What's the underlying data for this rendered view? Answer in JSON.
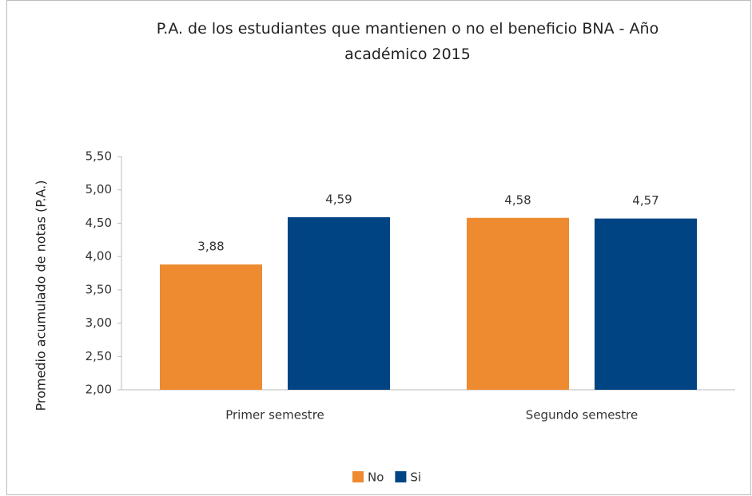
{
  "chart_data": {
    "type": "bar",
    "title": "P.A. de los estudiantes que mantienen o no el beneficio BNA - Año académico 2015",
    "ylabel": "Promedio acumulado de notas (P.A.)",
    "categories": [
      "Primer semestre",
      "Segundo semestre"
    ],
    "series": [
      {
        "name": "No",
        "color": "#ee8a2f",
        "values": [
          3.88,
          4.58
        ],
        "value_labels": [
          "3,88",
          "4,58"
        ]
      },
      {
        "name": "Si",
        "color": "#004483",
        "values": [
          4.59,
          4.57
        ],
        "value_labels": [
          "4,59",
          "4,57"
        ]
      }
    ],
    "ylim": [
      2.0,
      5.5
    ],
    "yticks": [
      {
        "value": 2.0,
        "label": "2,00"
      },
      {
        "value": 2.5,
        "label": "2,50"
      },
      {
        "value": 3.0,
        "label": "3,00"
      },
      {
        "value": 3.5,
        "label": "3,50"
      },
      {
        "value": 4.0,
        "label": "4,00"
      },
      {
        "value": 4.5,
        "label": "4,50"
      },
      {
        "value": 5.0,
        "label": "5,00"
      },
      {
        "value": 5.5,
        "label": "5,50"
      }
    ],
    "legend": "bottom"
  }
}
